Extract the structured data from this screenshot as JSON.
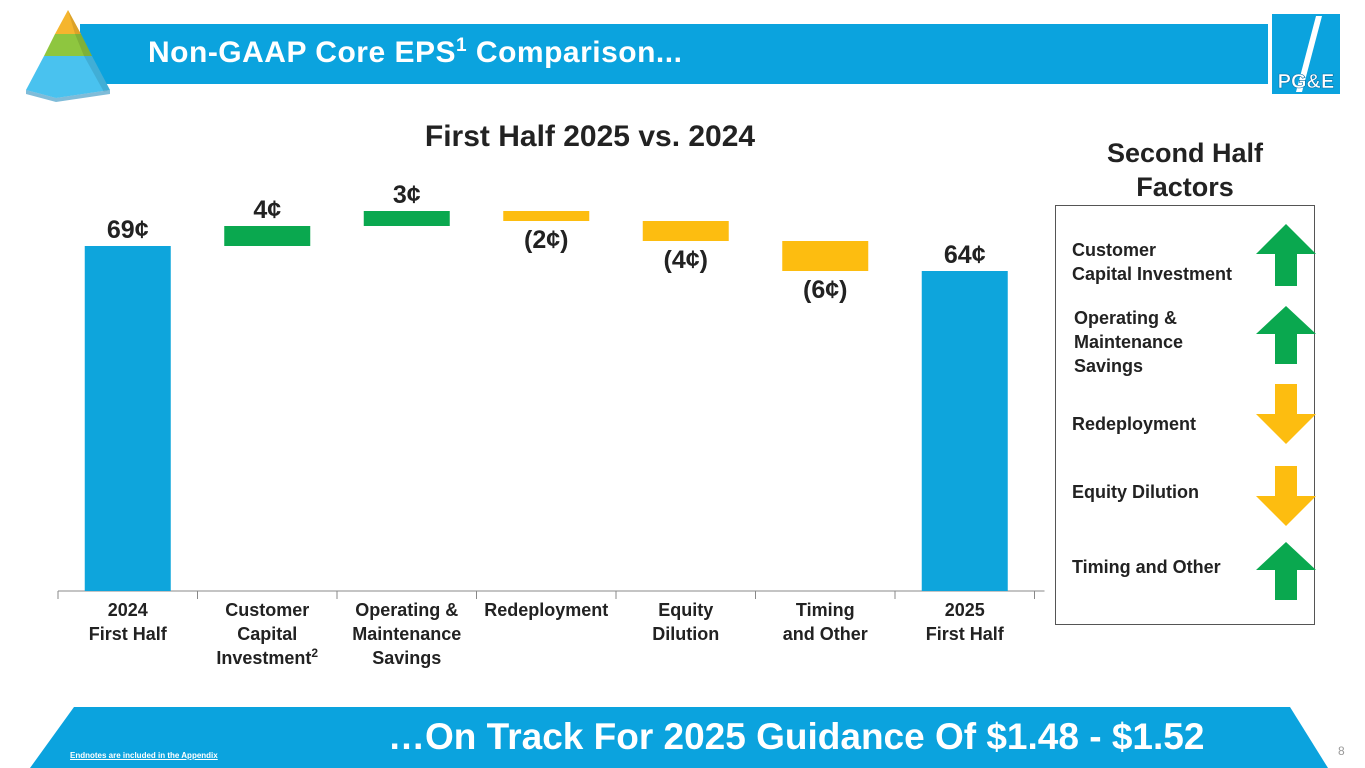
{
  "header": {
    "title": "Non-GAAP Core EPS",
    "title_sup": "1",
    "title_suffix": " Comparison..."
  },
  "logo": {
    "text": "PG&E"
  },
  "chart_data": {
    "type": "waterfall",
    "title": "First Half 2025 vs. 2024",
    "unit": "¢",
    "categories": [
      {
        "lines": [
          "2024",
          "First Half"
        ],
        "sup": ""
      },
      {
        "lines": [
          "Customer",
          "Capital",
          "Investment"
        ],
        "sup": "2"
      },
      {
        "lines": [
          "Operating &",
          "Maintenance",
          "Savings"
        ],
        "sup": ""
      },
      {
        "lines": [
          "Redeployment"
        ],
        "sup": ""
      },
      {
        "lines": [
          "Equity",
          "Dilution"
        ],
        "sup": ""
      },
      {
        "lines": [
          "Timing",
          "and Other"
        ],
        "sup": ""
      },
      {
        "lines": [
          "2025",
          "First Half"
        ],
        "sup": ""
      }
    ],
    "bars": [
      {
        "kind": "total",
        "value": 69,
        "label": "69¢"
      },
      {
        "kind": "increase",
        "value": 4,
        "label": "4¢"
      },
      {
        "kind": "increase",
        "value": 3,
        "label": "3¢"
      },
      {
        "kind": "decrease",
        "value": -2,
        "label": "(2¢)"
      },
      {
        "kind": "decrease",
        "value": -4,
        "label": "(4¢)"
      },
      {
        "kind": "decrease",
        "value": -6,
        "label": "(6¢)"
      },
      {
        "kind": "total",
        "value": 64,
        "label": "64¢"
      }
    ],
    "colors": {
      "total": "#0ea5dc",
      "increase": "#0aa84f",
      "decrease": "#fdbd10"
    }
  },
  "side_panel": {
    "heading_line1": "Second Half",
    "heading_line2": "Factors",
    "factors": [
      {
        "label_lines": [
          "Customer",
          "Capital Investment"
        ],
        "direction": "up"
      },
      {
        "label_lines": [
          "Operating &",
          "Maintenance",
          "Savings"
        ],
        "direction": "up"
      },
      {
        "label_lines": [
          "Redeployment"
        ],
        "direction": "down"
      },
      {
        "label_lines": [
          "Equity Dilution"
        ],
        "direction": "down"
      },
      {
        "label_lines": [
          "Timing and Other"
        ],
        "direction": "up"
      }
    ]
  },
  "footer": {
    "headline": "…On Track For 2025 Guidance Of $1.48 - $1.52",
    "endnote": "Endnotes are included in the Appendix",
    "page_number": "8"
  }
}
